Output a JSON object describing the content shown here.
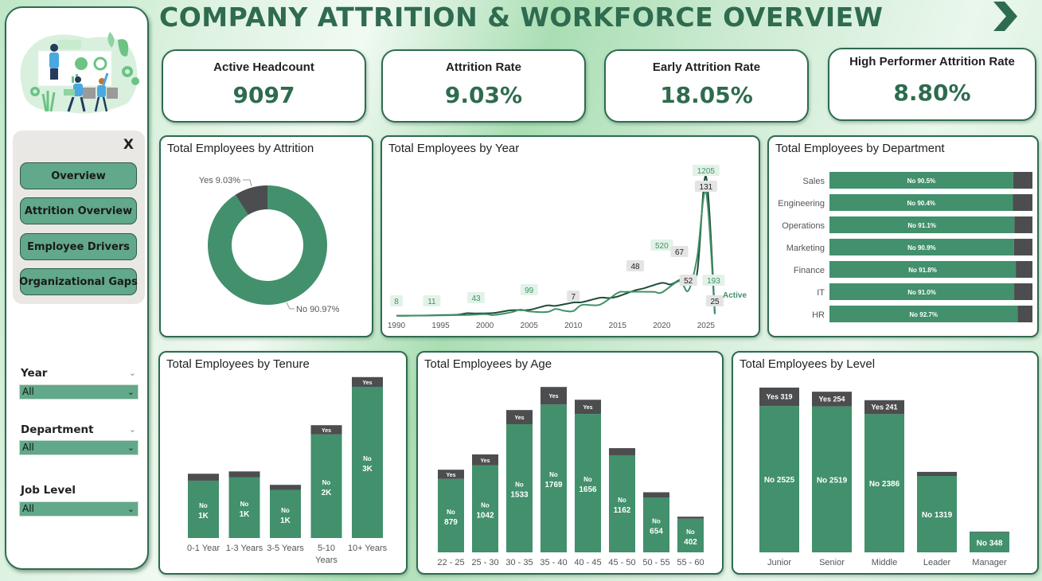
{
  "header": {
    "title": "COMPANY ATTRITION & WORKFORCE OVERVIEW",
    "next_icon": "chevron-right-icon"
  },
  "nav": {
    "close_label": "X",
    "buttons": [
      "Overview",
      "Attrition Overview",
      "Employee Drivers",
      "Organizational Gaps"
    ]
  },
  "filters": [
    {
      "label": "Year",
      "value": "All"
    },
    {
      "label": "Department",
      "value": "All"
    },
    {
      "label": "Job Level",
      "value": "All"
    }
  ],
  "kpis": [
    {
      "label": "Active Headcount",
      "value": "9097"
    },
    {
      "label": "Attrition Rate",
      "value": "9.03%"
    },
    {
      "label": "Early Attrition Rate",
      "value": "18.05%"
    },
    {
      "label": "High Performer Attrition Rate",
      "value": "8.80%"
    }
  ],
  "colors": {
    "no": "#42906c",
    "yes": "#4c4d4f",
    "accent": "#2e6b4f",
    "line_total": "#1f4d37",
    "line_active": "#3f9168"
  },
  "chart_data": [
    {
      "id": "attrition",
      "type": "pie",
      "title": "Total Employees by Attrition",
      "slices": [
        {
          "label": "No",
          "value": 90.97,
          "text": "No 90.97%"
        },
        {
          "label": "Yes",
          "value": 9.03,
          "text": "Yes 9.03%"
        }
      ]
    },
    {
      "id": "year",
      "type": "line",
      "title": "Total Employees by Year",
      "x_ticks": [
        "1990",
        "1995",
        "2000",
        "2005",
        "2010",
        "2015",
        "2020",
        "2025"
      ],
      "x_range": [
        1990,
        2026
      ],
      "legend": "Active",
      "series": [
        {
          "name": "Total",
          "x": [
            1990,
            1993,
            1995,
            1997,
            1998,
            1999,
            2001,
            2003,
            2005,
            2007,
            2008,
            2010,
            2011,
            2013,
            2014,
            2015,
            2017,
            2018,
            2020,
            2021,
            2022,
            2023,
            2024,
            2025,
            2026
          ],
          "y": [
            8,
            10,
            14,
            18,
            30,
            28,
            32,
            55,
            58,
            95,
            92,
            120,
            123,
            160,
            158,
            170,
            223,
            240,
            285,
            272,
            310,
            340,
            370,
            1180,
            30
          ]
        },
        {
          "name": "Active",
          "x": [
            1990,
            1993,
            1995,
            1997,
            1998,
            2000,
            2001,
            2003,
            2004,
            2005,
            2007,
            2008,
            2009,
            2010,
            2011,
            2013,
            2015,
            2016,
            2019,
            2020,
            2022,
            2023,
            2024,
            2025,
            2026
          ],
          "y": [
            8,
            11,
            12,
            14,
            15,
            22,
            15,
            38,
            60,
            45,
            40,
            65,
            50,
            48,
            100,
            102,
            200,
            210,
            210,
            205,
            300,
            220,
            500,
            1050,
            22
          ]
        }
      ],
      "labels": [
        {
          "series": "Active",
          "x": 1990,
          "text": "8"
        },
        {
          "series": "Active",
          "x": 1994,
          "text": "11"
        },
        {
          "series": "Active",
          "x": 1999,
          "text": "43"
        },
        {
          "series": "Active",
          "x": 2005,
          "text": "99"
        },
        {
          "series": "Total",
          "x": 2010,
          "text": "7"
        },
        {
          "series": "Total",
          "x": 2017,
          "text": "48"
        },
        {
          "series": "Active",
          "x": 2020,
          "text": "520"
        },
        {
          "series": "Total",
          "x": 2022,
          "text": "67"
        },
        {
          "series": "Total",
          "x": 2023,
          "text": "52"
        },
        {
          "series": "Active",
          "x": 2025,
          "text": "1205"
        },
        {
          "series": "Total",
          "x": 2025,
          "text": "131"
        },
        {
          "series": "Active",
          "x": 2025.5,
          "text": "193"
        },
        {
          "series": "Total",
          "x": 2026,
          "text": "25"
        }
      ]
    },
    {
      "id": "department",
      "type": "bar",
      "orientation": "horizontal",
      "stacked": "100%",
      "title": "Total Employees by Department",
      "categories": [
        "Sales",
        "Engineering",
        "Operations",
        "Marketing",
        "Finance",
        "IT",
        "HR"
      ],
      "series": [
        {
          "name": "No",
          "values": [
            90.5,
            90.4,
            91.1,
            90.9,
            91.8,
            91.0,
            92.7
          ]
        },
        {
          "name": "Yes",
          "values": [
            9.5,
            9.6,
            8.9,
            9.1,
            8.2,
            9.0,
            7.3
          ]
        }
      ],
      "labels": [
        "No 90.5%",
        "No 90.4%",
        "No 91.1%",
        "No 90.9%",
        "No 91.8%",
        "No 91.0%",
        "No 92.7%"
      ]
    },
    {
      "id": "tenure",
      "type": "bar",
      "stacked": true,
      "title": "Total Employees by Tenure",
      "categories": [
        "0-1 Year",
        "1-3 Years",
        "3-5 Years",
        "5-10 Years",
        "10+ Years"
      ],
      "series": [
        {
          "name": "No",
          "values": [
            1240,
            1310,
            1040,
            2240,
            3270
          ]
        },
        {
          "name": "Yes",
          "values": [
            150,
            130,
            110,
            200,
            210
          ]
        }
      ],
      "no_labels": [
        "1K",
        "1K",
        "1K",
        "2K",
        "3K"
      ],
      "yes_labels": [
        "",
        "",
        "",
        "Yes",
        "Yes"
      ],
      "ylim": [
        0,
        3700
      ]
    },
    {
      "id": "age",
      "type": "bar",
      "stacked": true,
      "title": "Total Employees by Age",
      "categories": [
        "22 - 25",
        "25 - 30",
        "30 - 35",
        "35 - 40",
        "40 - 45",
        "45 - 50",
        "50 - 55",
        "55 - 60"
      ],
      "series": [
        {
          "name": "No",
          "values": [
            879,
            1042,
            1533,
            1769,
            1656,
            1162,
            654,
            402
          ]
        },
        {
          "name": "Yes",
          "values": [
            110,
            130,
            170,
            210,
            170,
            85,
            65,
            25
          ]
        }
      ],
      "yes_labels": [
        "Yes",
        "Yes",
        "Yes",
        "Yes",
        "Yes",
        "",
        "",
        ""
      ],
      "ylim": [
        0,
        2000
      ]
    },
    {
      "id": "level",
      "type": "bar",
      "stacked": true,
      "title": "Total Employees by Level",
      "categories": [
        "Junior",
        "Senior",
        "Middle",
        "Leader",
        "Manager"
      ],
      "series": [
        {
          "name": "No",
          "values": [
            2525,
            2519,
            2386,
            1319,
            348
          ]
        },
        {
          "name": "Yes",
          "values": [
            319,
            254,
            241,
            70,
            10
          ]
        }
      ],
      "no_labels": [
        "No 2525",
        "No 2519",
        "No 2386",
        "No 1319",
        "No 348"
      ],
      "yes_labels": [
        "Yes 319",
        "Yes 254",
        "Yes 241",
        "",
        ""
      ],
      "ylim": [
        0,
        2844
      ]
    }
  ]
}
